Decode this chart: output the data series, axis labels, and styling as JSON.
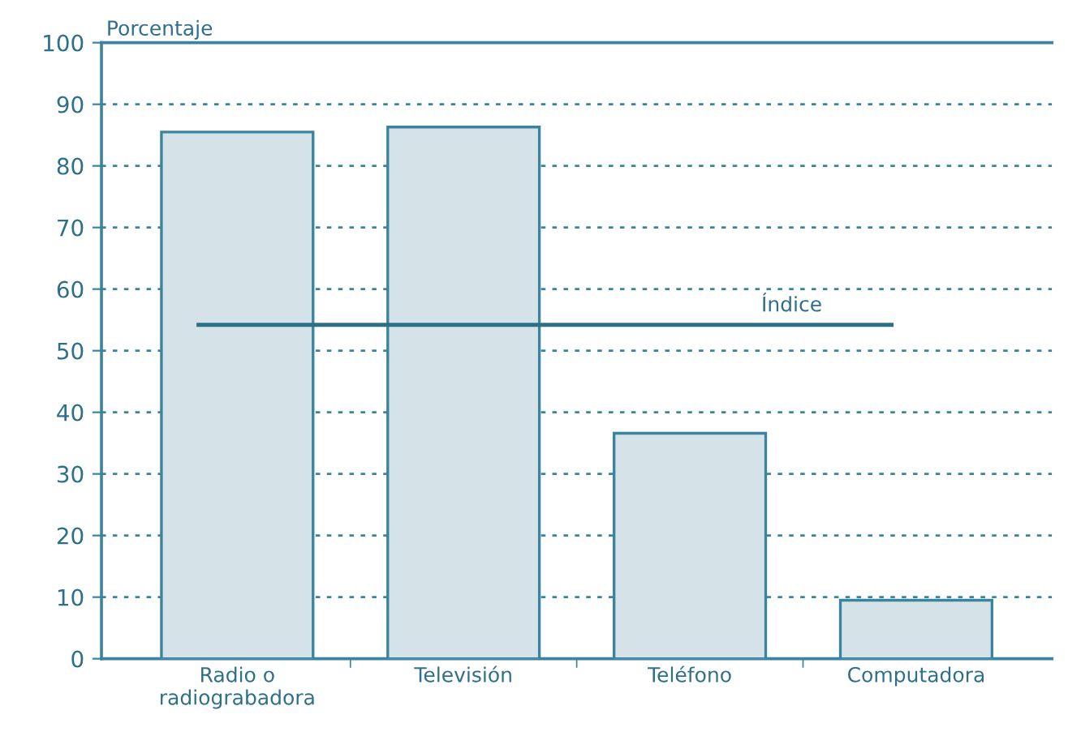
{
  "chart_data": {
    "type": "bar",
    "ylabel": "Porcentaje",
    "categories": [
      "Radio o\nradiograbadora",
      "Televisión",
      "Teléfono",
      "Computadora"
    ],
    "values": [
      85.5,
      86.3,
      36.6,
      9.5
    ],
    "color": "#d5e3e8",
    "ylim": [
      0,
      100
    ],
    "yticks": [
      0,
      10,
      20,
      30,
      40,
      50,
      60,
      70,
      80,
      90,
      100
    ],
    "grid": "y",
    "ref_lines": [
      {
        "axis": "y",
        "value": 54.2,
        "label": "Índice",
        "color": "#2e6f88",
        "line_style": "solid"
      }
    ]
  }
}
